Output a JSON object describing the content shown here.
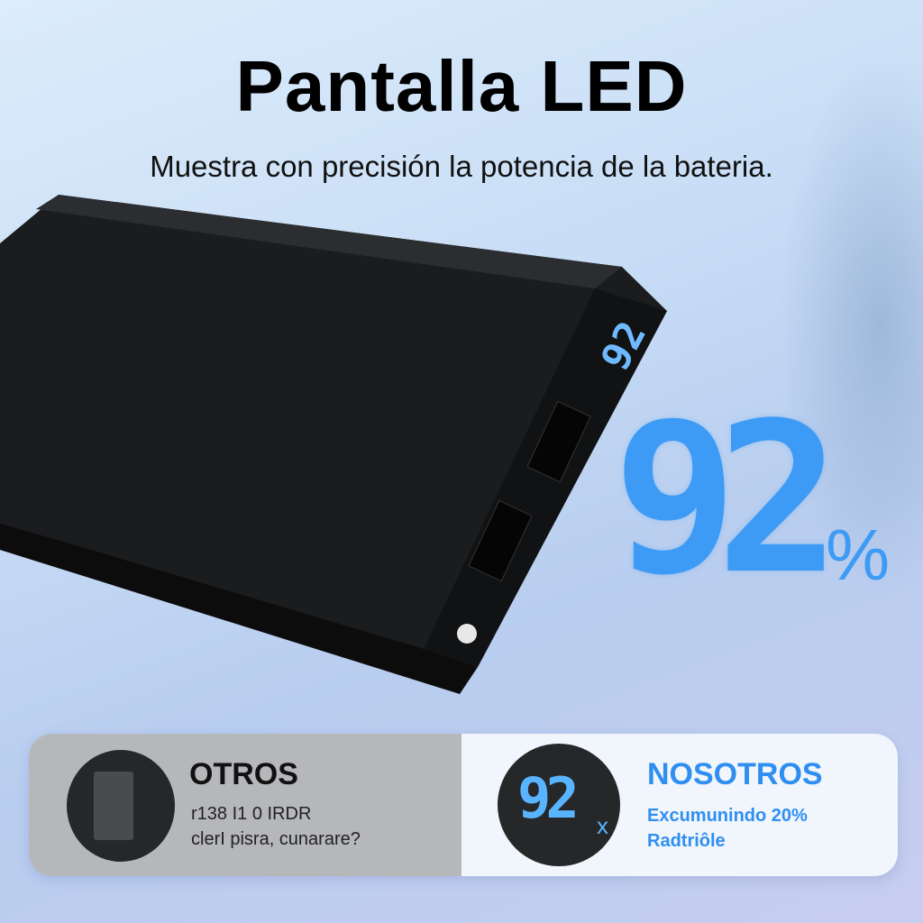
{
  "header": {
    "title": "Pantalla LED",
    "subtitle": "Muestra con precisión la potencia de la bateria."
  },
  "device": {
    "display_value": "92"
  },
  "hero": {
    "value": "92",
    "unit": "%"
  },
  "compare": {
    "others": {
      "title": "OTROS",
      "line1": "r138 I1 0 IRDR",
      "line2": "clerI pisra, cunarare?"
    },
    "ours": {
      "display": "92",
      "display_suffix": "x",
      "title": "NOSOTROS",
      "line1": "Excumunindo 20%",
      "line2": "Radtriôle"
    }
  },
  "colors": {
    "accent": "#3d9bf5",
    "device": "#151617"
  }
}
